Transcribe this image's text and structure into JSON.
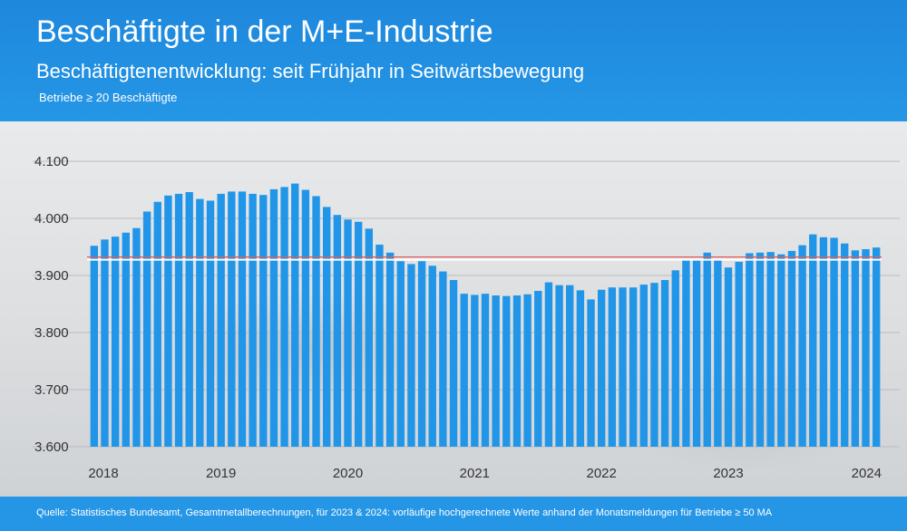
{
  "header": {
    "title": "Beschäftigte in der M+E-Industrie",
    "subtitle": "Beschäftigtenentwicklung: seit Frühjahr in Seitwärtsbewegung",
    "note": "Betriebe ≥ 20 Beschäftigte"
  },
  "footer": {
    "source": "Quelle: Statistisches Bundesamt, Gesamtmetallberechnungen, für 2023 & 2024: vorläufige hochgerechnete Werte anhand der Monatsmeldungen für Betriebe ≥ 50 MA"
  },
  "colors": {
    "header": "#1e88dc",
    "bar": "#2196e8",
    "reference_line": "#e05a5a",
    "footer": "#2596e6"
  },
  "chart_data": {
    "type": "bar",
    "title": "Beschäftigte in der M+E-Industrie",
    "ylim": [
      3600,
      4100
    ],
    "y_ticks": [
      3600,
      3700,
      3800,
      3900,
      4000,
      4100
    ],
    "y_tick_labels": [
      "3.600",
      "3.700",
      "3.800",
      "3.900",
      "4.000",
      "4.100"
    ],
    "x_tick_labels": [
      "2018",
      "2019",
      "2020",
      "2021",
      "2022",
      "2023",
      "2024"
    ],
    "x_label_bar_index": [
      0,
      12,
      24,
      36,
      48,
      60,
      72
    ],
    "reference_line": 3930,
    "grid": true,
    "legend": "none",
    "values": [
      3952,
      3963,
      3968,
      3975,
      3983,
      4012,
      4029,
      4040,
      4043,
      4046,
      4034,
      4031,
      4043,
      4047,
      4047,
      4043,
      4041,
      4051,
      4055,
      4061,
      4050,
      4039,
      4020,
      4006,
      3998,
      3994,
      3982,
      3954,
      3940,
      3925,
      3920,
      3925,
      3917,
      3907,
      3892,
      3868,
      3866,
      3868,
      3865,
      3864,
      3865,
      3867,
      3873,
      3888,
      3883,
      3883,
      3874,
      3858,
      3875,
      3879,
      3879,
      3879,
      3884,
      3887,
      3892,
      3909,
      3928,
      3928,
      3940,
      3928,
      3914,
      3924,
      3939,
      3940,
      3941,
      3937,
      3943,
      3953,
      3972,
      3967,
      3966,
      3956,
      3944,
      3946,
      3949
    ]
  }
}
